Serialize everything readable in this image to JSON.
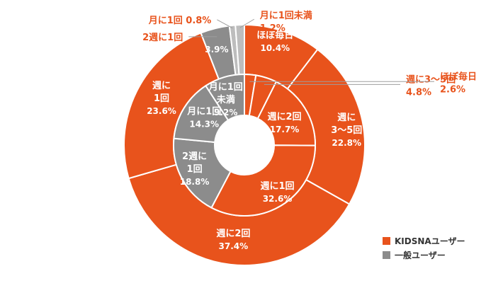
{
  "colors": {
    "orange": "#E8531C",
    "gray": "#8C8C8C",
    "light_gray": "#BDBDBD",
    "white_text": "#FFFFFF",
    "leader": "#9E9E9E"
  },
  "chart_data": {
    "type": "pie",
    "style": "nested-donut",
    "legend_position": "bottom-right",
    "legend": [
      {
        "name": "KIDSNAユーザー",
        "color": "#E8531C"
      },
      {
        "name": "一般ユーザー",
        "color": "#8C8C8C"
      }
    ],
    "series": [
      {
        "name": "KIDSNAユーザー",
        "ring": "outer",
        "slices": [
          {
            "label": "ほぼ毎日",
            "value": 10.4
          },
          {
            "label": "週に3〜5回",
            "value": 22.8
          },
          {
            "label": "週に2回",
            "value": 37.4
          },
          {
            "label": "週に1回",
            "value": 23.6
          },
          {
            "label": "2週に1回",
            "value": 3.9
          },
          {
            "label": "月に1回",
            "value": 0.8
          },
          {
            "label": "月に1回未満",
            "value": 1.2
          }
        ]
      },
      {
        "name": "一般ユーザー",
        "ring": "inner",
        "slices": [
          {
            "label": "ほぼ毎日",
            "value": 2.6
          },
          {
            "label": "週に3〜5回",
            "value": 4.8
          },
          {
            "label": "週に2回",
            "value": 17.7
          },
          {
            "label": "週に1回",
            "value": 32.6
          },
          {
            "label": "2週に1回",
            "value": 18.8
          },
          {
            "label": "月に1回",
            "value": 14.3
          },
          {
            "label": "月に1回未満",
            "value": 9.2
          }
        ]
      }
    ],
    "slice_labels": {
      "outer": [
        [
          "ほぼ毎日",
          "10.4%"
        ],
        [
          "週に",
          "3〜5回",
          "22.8%"
        ],
        [
          "週に2回",
          "37.4%"
        ],
        [
          "週に",
          "1回",
          "23.6%"
        ],
        [
          "3.9%"
        ],
        [],
        []
      ],
      "inner": [
        [],
        [],
        [
          "週に2回",
          "17.7%"
        ],
        [
          "週に1回",
          "32.6%"
        ],
        [
          "2週に",
          "1回",
          "18.8%"
        ],
        [
          "月に1回",
          "14.3%"
        ],
        [
          "月に1回",
          "未満",
          "9.2%"
        ]
      ]
    },
    "callouts": [
      {
        "label": "月に1回",
        "value": "0.8%"
      },
      {
        "label": "2週に1回",
        "value": ""
      },
      {
        "label": "月に1回未満",
        "value": "1.2%"
      },
      {
        "label": "週に3〜5回",
        "value": "4.8%"
      },
      {
        "label": "ほぼ毎日",
        "value": "2.6%"
      }
    ]
  }
}
